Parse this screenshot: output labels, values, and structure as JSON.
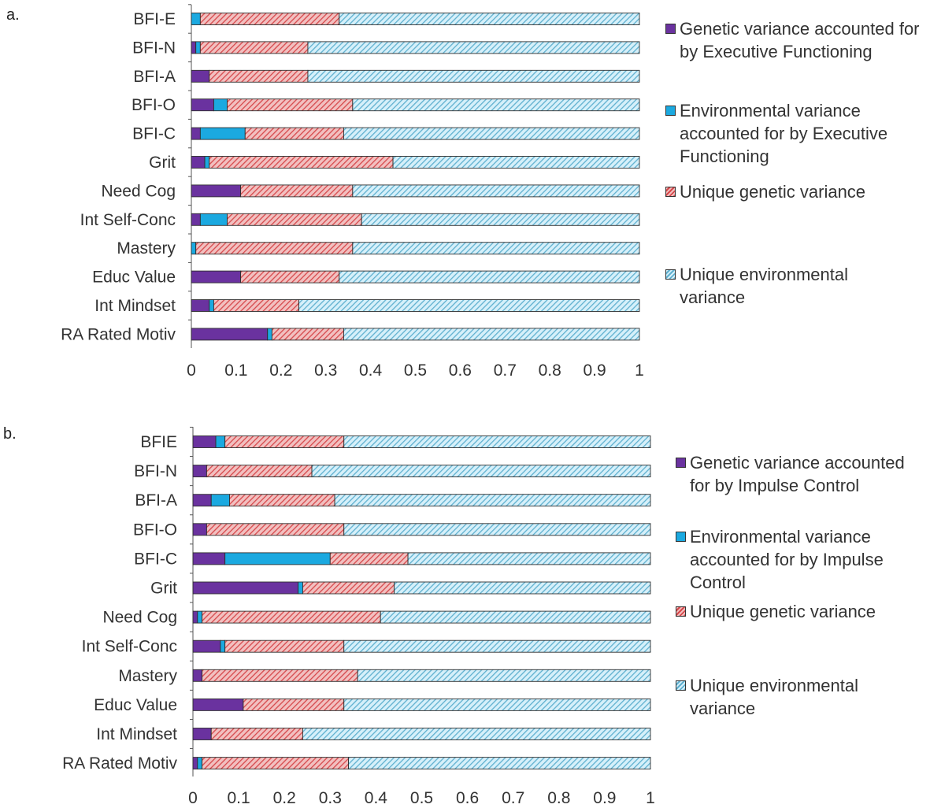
{
  "panels": [
    {
      "label": "a.",
      "legend": [
        "Genetic variance accounted for by Executive Functioning",
        " Environmental variance accounted for by Executive Functioning",
        "Unique genetic variance",
        "Unique environmental variance"
      ]
    },
    {
      "label": "b.",
      "legend": [
        "Genetic variance accounted for by Impulse Control",
        " Environmental variance accounted for by Impulse Control",
        "Unique genetic variance",
        "Unique environmental variance"
      ]
    }
  ],
  "colors": {
    "genetic": "#6a329f",
    "environmental": "#1ba9e0",
    "unique_genetic_fill": "#f2c0c0",
    "unique_genetic_hatch": "#d6484b",
    "unique_environmental_fill": "#d6f0fa",
    "unique_environmental_hatch": "#5fb0cf"
  },
  "chart_data": [
    {
      "type": "bar",
      "orientation": "horizontal",
      "stacked": true,
      "categories": [
        "BFI-E",
        "BFI-N",
        "BFI-A",
        "BFI-O",
        "BFI-C",
        "Grit",
        "Need Cog",
        "Int Self-Conc",
        "Mastery",
        "Educ Value",
        "Int Mindset",
        "RA Rated Motiv"
      ],
      "series": [
        {
          "name": "Genetic variance accounted for by Executive Functioning",
          "values": [
            0.0,
            0.01,
            0.04,
            0.05,
            0.02,
            0.03,
            0.11,
            0.02,
            0.0,
            0.11,
            0.04,
            0.17
          ]
        },
        {
          "name": " Environmental variance accounted for by Executive Functioning",
          "values": [
            0.02,
            0.01,
            0.0,
            0.03,
            0.1,
            0.01,
            0.0,
            0.06,
            0.01,
            0.0,
            0.01,
            0.01
          ]
        },
        {
          "name": "Unique genetic variance",
          "values": [
            0.31,
            0.24,
            0.22,
            0.28,
            0.22,
            0.41,
            0.25,
            0.3,
            0.35,
            0.22,
            0.19,
            0.16
          ]
        },
        {
          "name": "Unique environmental variance",
          "values": [
            0.67,
            0.74,
            0.74,
            0.64,
            0.66,
            0.55,
            0.64,
            0.62,
            0.64,
            0.67,
            0.76,
            0.66
          ]
        }
      ],
      "xticks": [
        "0",
        "0.1",
        "0.2",
        "0.3",
        "0.4",
        "0.5",
        "0.6",
        "0.7",
        "0.8",
        "0.9",
        "1"
      ],
      "xlim": [
        0,
        1
      ],
      "grid": false,
      "legend_position": "right"
    },
    {
      "type": "bar",
      "orientation": "horizontal",
      "stacked": true,
      "categories": [
        "BFIE",
        "BFI-N",
        "BFI-A",
        "BFI-O",
        "BFI-C",
        "Grit",
        "Need Cog",
        "Int Self-Conc",
        "Mastery",
        "Educ Value",
        "Int Mindset",
        "RA Rated Motiv"
      ],
      "series": [
        {
          "name": "Genetic variance accounted for by Impulse Control",
          "values": [
            0.05,
            0.03,
            0.04,
            0.03,
            0.07,
            0.23,
            0.01,
            0.06,
            0.02,
            0.11,
            0.04,
            0.01
          ]
        },
        {
          "name": " Environmental variance accounted for by Impulse Control",
          "values": [
            0.02,
            0.0,
            0.04,
            0.0,
            0.23,
            0.01,
            0.01,
            0.01,
            0.0,
            0.0,
            0.0,
            0.01
          ]
        },
        {
          "name": "Unique genetic variance",
          "values": [
            0.26,
            0.23,
            0.23,
            0.3,
            0.17,
            0.2,
            0.39,
            0.26,
            0.34,
            0.22,
            0.2,
            0.32
          ]
        },
        {
          "name": "Unique environmental variance",
          "values": [
            0.67,
            0.74,
            0.69,
            0.67,
            0.53,
            0.56,
            0.59,
            0.67,
            0.64,
            0.67,
            0.76,
            0.66
          ]
        }
      ],
      "xticks": [
        "0",
        "0.1",
        "0.2",
        "0.3",
        "0.4",
        "0.5",
        "0.6",
        "0.7",
        "0.8",
        "0.9",
        "1"
      ],
      "xlim": [
        0,
        1
      ],
      "grid": false,
      "legend_position": "right"
    }
  ]
}
